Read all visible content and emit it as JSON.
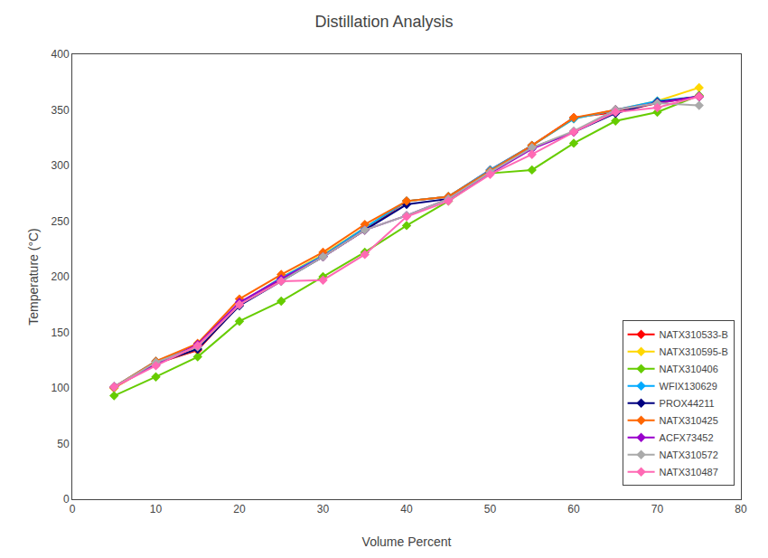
{
  "chart_data": {
    "type": "line",
    "title": "Distillation Analysis",
    "xlabel": "Volume Percent",
    "ylabel": "Temperature (°C)",
    "xlim": [
      0,
      80
    ],
    "ylim": [
      0,
      400
    ],
    "xticks": [
      0,
      10,
      20,
      30,
      40,
      50,
      60,
      70,
      80
    ],
    "yticks": [
      0,
      50,
      100,
      150,
      200,
      250,
      300,
      350,
      400
    ],
    "grid": false,
    "legend": "lower right",
    "x": [
      5,
      10,
      15,
      20,
      25,
      30,
      35,
      40,
      45,
      50,
      55,
      60,
      65,
      70,
      75
    ],
    "series": [
      {
        "name": "NATX310533-B",
        "color": "#FF0000",
        "marker": "diamond",
        "values": [
          100,
          122,
          134,
          175,
          197,
          218,
          242,
          268,
          272,
          296,
          318,
          343,
          348,
          356,
          362
        ]
      },
      {
        "name": "NATX310595-B",
        "color": "#FFD700",
        "marker": "diamond",
        "values": [
          100,
          122,
          135,
          176,
          199,
          220,
          244,
          268,
          272,
          295,
          318,
          342,
          350,
          358,
          370
        ]
      },
      {
        "name": "NATX310406",
        "color": "#66CC00",
        "marker": "diamond",
        "values": [
          93,
          110,
          128,
          160,
          178,
          200,
          222,
          246,
          268,
          293,
          296,
          320,
          340,
          348,
          363
        ]
      },
      {
        "name": "WFIX130629",
        "color": "#00AAFF",
        "marker": "diamond",
        "values": [
          101,
          124,
          137,
          176,
          199,
          219,
          244,
          268,
          272,
          296,
          318,
          342,
          350,
          358,
          362
        ]
      },
      {
        "name": "PROX44211",
        "color": "#000080",
        "marker": "diamond",
        "values": [
          101,
          122,
          135,
          174,
          196,
          218,
          242,
          265,
          270,
          294,
          316,
          330,
          347,
          357,
          362
        ]
      },
      {
        "name": "NATX310425",
        "color": "#FF6600",
        "marker": "diamond",
        "values": [
          101,
          124,
          140,
          180,
          202,
          222,
          247,
          268,
          272,
          295,
          318,
          343,
          350,
          356,
          362
        ]
      },
      {
        "name": "ACFX73452",
        "color": "#9900CC",
        "marker": "diamond",
        "values": [
          101,
          121,
          139,
          177,
          198,
          218,
          242,
          255,
          270,
          293,
          315,
          330,
          350,
          356,
          362
        ]
      },
      {
        "name": "NATX310572",
        "color": "#AAAAAA",
        "marker": "diamond",
        "values": [
          101,
          123,
          137,
          175,
          196,
          218,
          242,
          255,
          270,
          294,
          316,
          331,
          350,
          356,
          354
        ]
      },
      {
        "name": "NATX310487",
        "color": "#FF69B4",
        "marker": "diamond",
        "values": [
          101,
          120,
          138,
          175,
          196,
          197,
          220,
          254,
          268,
          292,
          310,
          330,
          348,
          352,
          362
        ]
      }
    ]
  }
}
